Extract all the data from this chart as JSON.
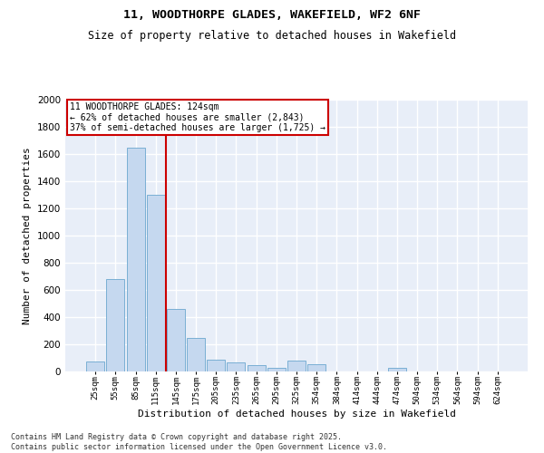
{
  "title_line1": "11, WOODTHORPE GLADES, WAKEFIELD, WF2 6NF",
  "title_line2": "Size of property relative to detached houses in Wakefield",
  "xlabel": "Distribution of detached houses by size in Wakefield",
  "ylabel": "Number of detached properties",
  "bar_color": "#c5d8ef",
  "bar_edge_color": "#7aafd4",
  "background_color": "#e8eef8",
  "grid_color": "#ffffff",
  "annotation_line_color": "#cc0000",
  "annotation_box_color": "#cc0000",
  "property_line_x": 3.5,
  "annotation_text": "11 WOODTHORPE GLADES: 124sqm\n← 62% of detached houses are smaller (2,843)\n37% of semi-detached houses are larger (1,725) →",
  "footer_text": "Contains HM Land Registry data © Crown copyright and database right 2025.\nContains public sector information licensed under the Open Government Licence v3.0.",
  "categories": [
    "25sqm",
    "55sqm",
    "85sqm",
    "115sqm",
    "145sqm",
    "175sqm",
    "205sqm",
    "235sqm",
    "265sqm",
    "295sqm",
    "325sqm",
    "354sqm",
    "384sqm",
    "414sqm",
    "444sqm",
    "474sqm",
    "504sqm",
    "534sqm",
    "564sqm",
    "594sqm",
    "624sqm"
  ],
  "values": [
    75,
    680,
    1650,
    1300,
    460,
    250,
    90,
    65,
    45,
    30,
    80,
    55,
    0,
    0,
    0,
    28,
    0,
    0,
    0,
    0,
    0
  ],
  "ylim": [
    0,
    2000
  ],
  "yticks": [
    0,
    200,
    400,
    600,
    800,
    1000,
    1200,
    1400,
    1600,
    1800,
    2000
  ],
  "figwidth": 6.0,
  "figheight": 5.0,
  "dpi": 100
}
